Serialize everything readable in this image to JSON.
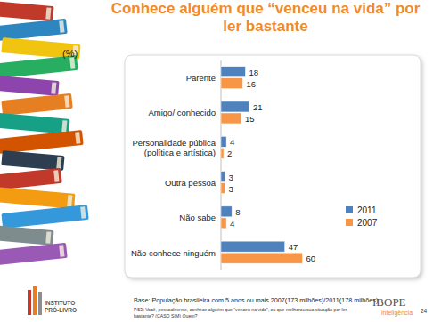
{
  "chart_data": {
    "type": "bar",
    "orientation": "horizontal",
    "title": "Conhece alguém que “venceu na vida” por ler bastante",
    "xlabel": "(%)",
    "categories": [
      "Parente",
      "Amigo/ conhecido",
      "Personalidade pública\n(política e artística)",
      "Outra pessoa",
      "Não sabe",
      "Não conhece ninguém"
    ],
    "series": [
      {
        "name": "2011",
        "color": "#4f81bd",
        "values": [
          18,
          21,
          4,
          3,
          8,
          47
        ]
      },
      {
        "name": "2007",
        "color": "#f79646",
        "values": [
          16,
          15,
          2,
          3,
          4,
          60
        ]
      }
    ],
    "xlim": [
      0,
      80
    ],
    "tick_labels": false,
    "data_labels": true,
    "legend": "right",
    "grid": false
  },
  "footer": {
    "base": "Base: População brasileira com 5 anos ou mais 2007(173 milhões)/2011(178 milhões)",
    "question": "P.53) Você, pessoalmente, conhece alguém que “venceu na vida”, ou que melhorou sua situação por ler\nbastante? (CASO SIM) Quem?",
    "logo_left": "INSTITUTO\nPRÓ-LIVRO",
    "logo_right": "IBOPE",
    "logo_right_sub": "inteligência",
    "page": "24"
  }
}
